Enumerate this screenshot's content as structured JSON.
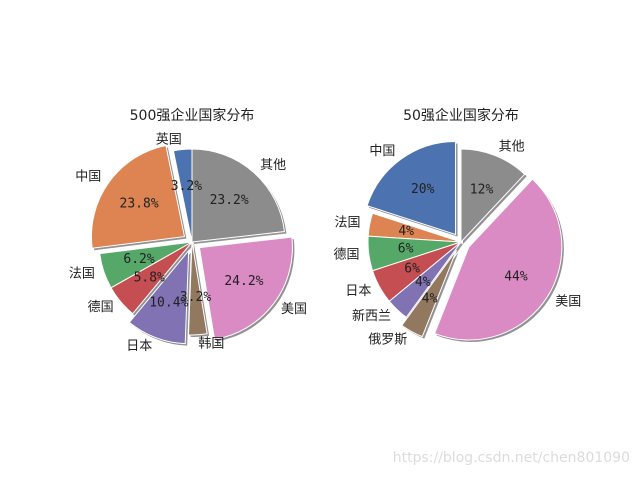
{
  "colors": {
    "blue": "#4c72b0",
    "orange": "#dd8452",
    "green": "#55a868",
    "red": "#c44e52",
    "purple": "#8172b3",
    "brown": "#937860",
    "pink": "#da8bc3",
    "gray": "#8c8c8c",
    "shadow": "#7f7f7f"
  },
  "watermark": "https://blog.csdn.net/chen801090",
  "chart_data": [
    {
      "type": "pie",
      "title": "500强企业国家分布",
      "start_angle_deg": 90,
      "direction": "counterclockwise",
      "shadow": true,
      "slices": [
        {
          "label": "英国",
          "value": 3.2,
          "pct_label": "3.2%",
          "color": "blue",
          "explode": 0
        },
        {
          "label": "中国",
          "value": 23.8,
          "pct_label": "23.8%",
          "color": "orange",
          "explode": 0.1
        },
        {
          "label": "法国",
          "value": 6.2,
          "pct_label": "6.2%",
          "color": "green",
          "explode": 0
        },
        {
          "label": "德国",
          "value": 5.8,
          "pct_label": "5.8%",
          "color": "red",
          "explode": 0
        },
        {
          "label": "日本",
          "value": 10.4,
          "pct_label": "10.4%",
          "color": "purple",
          "explode": 0.1
        },
        {
          "label": "韩国",
          "value": 3.2,
          "pct_label": "3.2%",
          "color": "brown",
          "explode": 0
        },
        {
          "label": "美国",
          "value": 24.2,
          "pct_label": "24.2%",
          "color": "pink",
          "explode": 0.1
        },
        {
          "label": "其他",
          "value": 23.2,
          "pct_label": "23.2%",
          "color": "gray",
          "explode": 0
        }
      ]
    },
    {
      "type": "pie",
      "title": "50强企业国家分布",
      "start_angle_deg": 90,
      "direction": "counterclockwise",
      "shadow": true,
      "slices": [
        {
          "label": "中国",
          "value": 20,
          "pct_label": "20%",
          "color": "blue",
          "explode": 0.1
        },
        {
          "label": "法国",
          "value": 4,
          "pct_label": "4%",
          "color": "orange",
          "explode": 0
        },
        {
          "label": "德国",
          "value": 6,
          "pct_label": "6%",
          "color": "green",
          "explode": 0
        },
        {
          "label": "日本",
          "value": 6,
          "pct_label": "6%",
          "color": "red",
          "explode": 0
        },
        {
          "label": "新西兰",
          "value": 4,
          "pct_label": "4%",
          "color": "purple",
          "explode": 0
        },
        {
          "label": "俄罗斯",
          "value": 4,
          "pct_label": "4%",
          "color": "brown",
          "explode": 0.1
        },
        {
          "label": "美国",
          "value": 44,
          "pct_label": "44%",
          "color": "pink",
          "explode": 0.1
        },
        {
          "label": "其他",
          "value": 12,
          "pct_label": "12%",
          "color": "gray",
          "explode": 0
        }
      ]
    }
  ]
}
